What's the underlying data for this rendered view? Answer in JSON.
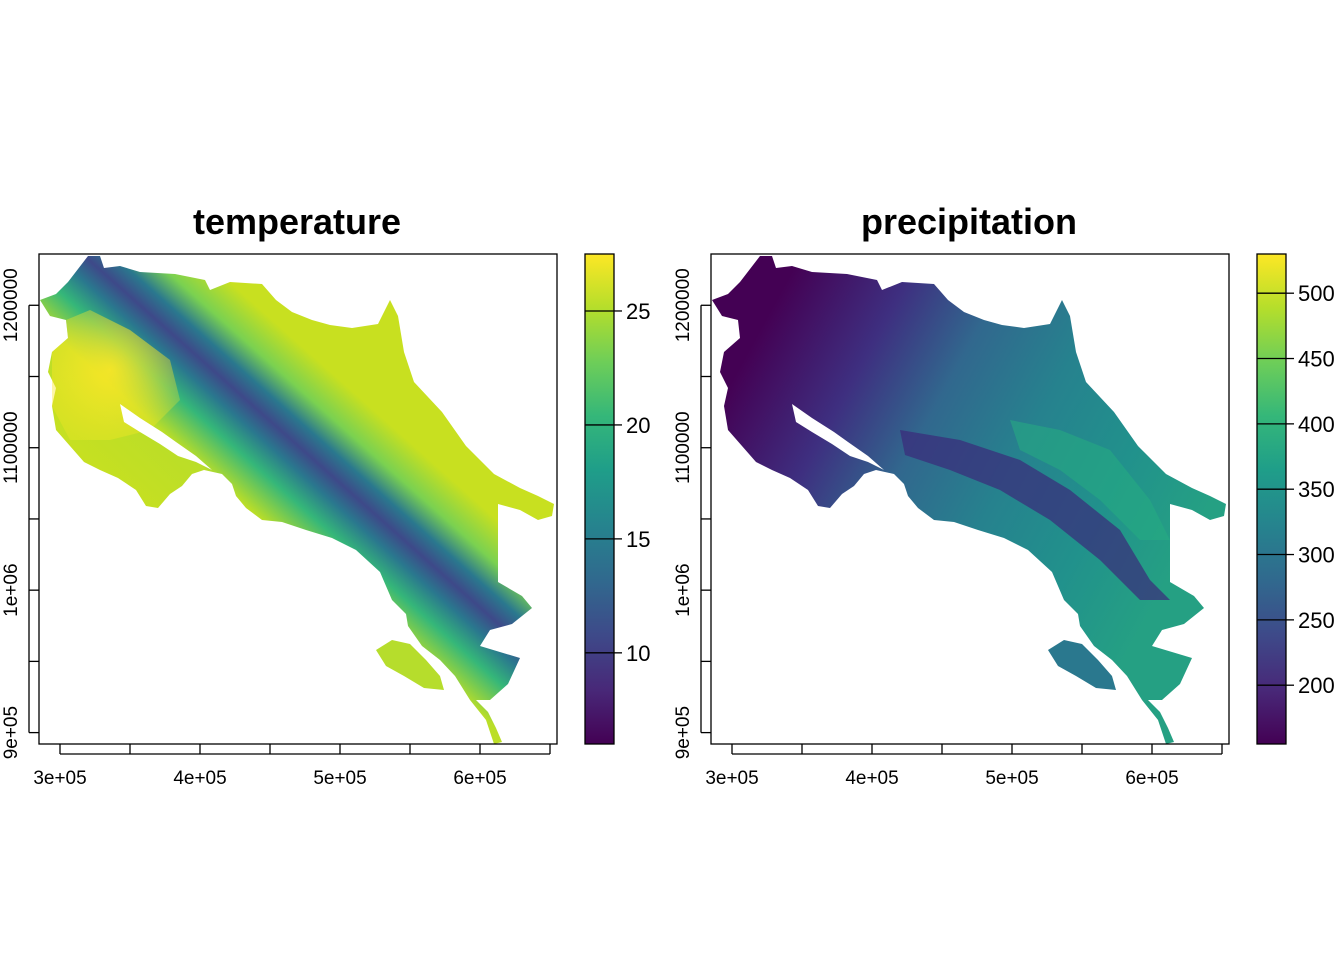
{
  "panels": [
    {
      "id": "temperature",
      "title": "temperature",
      "x_ticks": [
        "3e+05",
        "4e+05",
        "5e+05",
        "6e+05"
      ],
      "y_ticks": [
        "9e+05",
        "1e+06",
        "1100000",
        "1200000"
      ],
      "colorbar_ticks": [
        "10",
        "15",
        "20",
        "25"
      ],
      "colorbar_range": [
        6,
        27.5
      ],
      "land_color_stops": [
        "#c7e020",
        "#fde725",
        "#7ad151",
        "#22a884",
        "#2a788e",
        "#414487",
        "#440154"
      ],
      "ocean_color": "#ffffff"
    },
    {
      "id": "precipitation",
      "title": "precipitation",
      "x_ticks": [
        "3e+05",
        "4e+05",
        "5e+05",
        "6e+05"
      ],
      "y_ticks": [
        "9e+05",
        "1e+06",
        "1100000",
        "1200000"
      ],
      "colorbar_ticks": [
        "200",
        "250",
        "300",
        "350",
        "400",
        "450",
        "500"
      ],
      "colorbar_range": [
        155,
        530
      ],
      "land_color_stops": [
        "#440154",
        "#3b528b",
        "#2a788e",
        "#21918c",
        "#22a884",
        "#7ad151",
        "#fde725"
      ],
      "ocean_color": "#ffffff"
    }
  ],
  "x_domain": [
    285000,
    655000
  ],
  "y_domain": [
    892000,
    1236000
  ],
  "colormap": "viridis",
  "colors": {
    "viridis": [
      "#440154",
      "#482878",
      "#3e4989",
      "#31688e",
      "#26828e",
      "#1f9e89",
      "#35b779",
      "#6ece58",
      "#b5de2b",
      "#fde725"
    ]
  }
}
